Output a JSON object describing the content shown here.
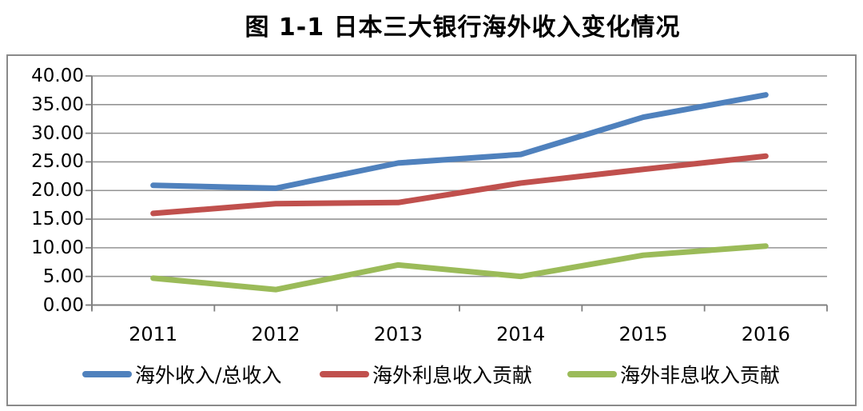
{
  "title": "图 1-1 日本三大银行海外收入变化情况",
  "chart_data": {
    "type": "line",
    "title": "图 1-1 日本三大银行海外收入变化情况",
    "categories": [
      "2011",
      "2012",
      "2013",
      "2014",
      "2015",
      "2016"
    ],
    "series": [
      {
        "name": "海外收入/总收入",
        "color": "#4F81BD",
        "values": [
          20.9,
          20.4,
          24.8,
          26.3,
          32.8,
          36.7
        ]
      },
      {
        "name": "海外利息收入贡献",
        "color": "#C0504D",
        "values": [
          16.0,
          17.7,
          17.9,
          21.3,
          23.7,
          26.0
        ]
      },
      {
        "name": "海外非息收入贡献",
        "color": "#9BBB59",
        "values": [
          4.7,
          2.7,
          7.0,
          5.0,
          8.7,
          10.3
        ]
      }
    ],
    "y_ticks": [
      "40.00",
      "35.00",
      "30.00",
      "25.00",
      "20.00",
      "15.00",
      "10.00",
      "5.00",
      "0.00"
    ],
    "ylim": [
      0,
      40
    ],
    "y_step": 5,
    "xlabel": "",
    "ylabel": "",
    "grid": true,
    "legend_position": "bottom",
    "colors": {
      "gridline": "#949494",
      "axis": "#808080",
      "frame_border": "#8a8a8a",
      "text": "#000000"
    }
  }
}
